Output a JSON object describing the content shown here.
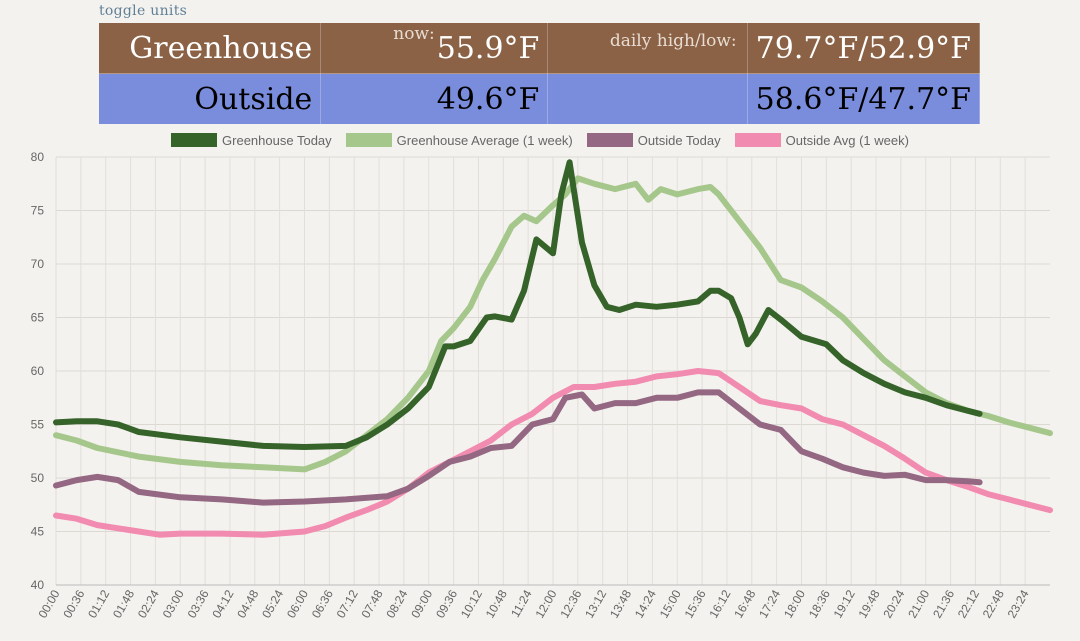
{
  "toggle_label": "toggle units",
  "stats": {
    "greenhouse": {
      "name": "Greenhouse",
      "now_label": "now:",
      "now": "55.9°F",
      "hl_label": "daily high/low:",
      "hl": "79.7°F/52.9°F"
    },
    "outside": {
      "name": "Outside",
      "now": "49.6°F",
      "hl": "58.6°F/47.7°F"
    }
  },
  "colors": {
    "greenhouse_row": "#8b6245",
    "outside_row": "#7a8ddc",
    "gh_today": "#356329",
    "gh_avg": "#a6c78b",
    "out_today": "#946782",
    "out_avg": "#f28bb0"
  },
  "chart_data": {
    "type": "line",
    "ylim": [
      40,
      80
    ],
    "yticks": [
      40,
      45,
      50,
      55,
      60,
      65,
      70,
      75,
      80
    ],
    "grid": true,
    "legend_position": "top",
    "x_ticks": [
      "00:00",
      "00:36",
      "01:12",
      "01:48",
      "02:24",
      "03:00",
      "03:36",
      "04:12",
      "04:48",
      "05:24",
      "06:00",
      "06:36",
      "07:12",
      "07:48",
      "08:24",
      "09:00",
      "09:36",
      "10:12",
      "10:48",
      "11:24",
      "12:00",
      "12:36",
      "13:12",
      "13:48",
      "14:24",
      "15:00",
      "15:36",
      "16:12",
      "16:48",
      "17:24",
      "18:00",
      "18:36",
      "19:12",
      "19:48",
      "20:24",
      "21:00",
      "21:36",
      "22:12",
      "22:48",
      "23:24"
    ],
    "series": [
      {
        "name": "Greenhouse Today",
        "color": "#356329",
        "x": [
          0,
          0.5,
          1,
          1.5,
          2,
          3,
          4,
          5,
          6,
          7,
          7.5,
          8,
          8.5,
          9,
          9.4,
          9.6,
          10,
          10.4,
          10.6,
          11,
          11.3,
          11.6,
          12,
          12.2,
          12.4,
          12.5,
          12.7,
          13,
          13.3,
          13.6,
          14,
          14.5,
          15,
          15.5,
          15.8,
          16,
          16.3,
          16.5,
          16.7,
          16.9,
          17.2,
          17.5,
          18,
          18.6,
          19,
          19.5,
          20,
          20.5,
          21,
          21.5,
          22,
          22.3
        ],
        "y": [
          55.2,
          55.3,
          55.3,
          55.0,
          54.3,
          53.8,
          53.4,
          53.0,
          52.9,
          53.0,
          53.8,
          55.0,
          56.5,
          58.5,
          62.3,
          62.3,
          62.8,
          65.0,
          65.1,
          64.8,
          67.5,
          72.3,
          71.0,
          76.5,
          79.5,
          77.0,
          72.0,
          68.0,
          66.0,
          65.7,
          66.2,
          66.0,
          66.2,
          66.5,
          67.5,
          67.5,
          66.8,
          65.0,
          62.5,
          63.5,
          65.7,
          64.8,
          63.2,
          62.5,
          61.0,
          59.8,
          58.8,
          58.0,
          57.5,
          56.8,
          56.3,
          56.0
        ]
      },
      {
        "name": "Greenhouse Average (1 week)",
        "color": "#a6c78b",
        "x": [
          0,
          0.5,
          1,
          2,
          3,
          4,
          5,
          6,
          6.5,
          7,
          7.5,
          8,
          8.5,
          9,
          9.3,
          9.6,
          10,
          10.3,
          10.6,
          11,
          11.3,
          11.6,
          12,
          12.3,
          12.6,
          13,
          13.5,
          14,
          14.3,
          14.6,
          15,
          15.5,
          15.8,
          16,
          16.5,
          17,
          17.5,
          18,
          18.5,
          19,
          19.5,
          20,
          20.5,
          21,
          21.5,
          22,
          22.5,
          23,
          23.5,
          24
        ],
        "y": [
          54.0,
          53.5,
          52.8,
          52.0,
          51.5,
          51.2,
          51.0,
          50.8,
          51.5,
          52.5,
          54.0,
          55.5,
          57.5,
          60.0,
          62.8,
          64.0,
          66.0,
          68.5,
          70.5,
          73.5,
          74.5,
          74.0,
          75.5,
          76.5,
          78.0,
          77.5,
          77.0,
          77.5,
          76.0,
          77.0,
          76.5,
          77.0,
          77.2,
          76.5,
          74.0,
          71.5,
          68.5,
          67.8,
          66.5,
          65.0,
          63.0,
          61.0,
          59.5,
          58.0,
          57.0,
          56.3,
          55.8,
          55.2,
          54.7,
          54.2
        ]
      },
      {
        "name": "Outside Today",
        "color": "#946782",
        "x": [
          0,
          0.5,
          1,
          1.5,
          2,
          3,
          4,
          5,
          6,
          7,
          8,
          8.5,
          9,
          9.5,
          10,
          10.5,
          11,
          11.5,
          12,
          12.3,
          12.7,
          13,
          13.5,
          14,
          14.5,
          15,
          15.5,
          16,
          16.5,
          17,
          17.5,
          18,
          18.5,
          19,
          19.5,
          20,
          20.5,
          21,
          21.5,
          22,
          22.3
        ],
        "y": [
          49.3,
          49.8,
          50.1,
          49.8,
          48.7,
          48.2,
          48.0,
          47.7,
          47.8,
          48.0,
          48.3,
          49.0,
          50.2,
          51.5,
          52.0,
          52.8,
          53.0,
          55.0,
          55.5,
          57.5,
          57.8,
          56.5,
          57.0,
          57.0,
          57.5,
          57.5,
          58.0,
          58.0,
          56.5,
          55.0,
          54.5,
          52.5,
          51.8,
          51.0,
          50.5,
          50.2,
          50.3,
          49.8,
          49.8,
          49.7,
          49.6
        ]
      },
      {
        "name": "Outside Avg (1 week)",
        "color": "#f28bb0",
        "x": [
          0,
          0.5,
          1,
          1.5,
          2,
          2.5,
          3,
          4,
          5,
          6,
          6.5,
          7,
          7.5,
          8,
          8.5,
          9,
          9.5,
          10,
          10.5,
          11,
          11.5,
          12,
          12.5,
          13,
          13.5,
          14,
          14.5,
          15,
          15.5,
          16,
          16.5,
          17,
          17.5,
          18,
          18.5,
          19,
          19.5,
          20,
          20.5,
          21,
          21.5,
          22,
          22.5,
          23,
          23.5,
          24
        ],
        "y": [
          46.5,
          46.2,
          45.6,
          45.3,
          45.0,
          44.7,
          44.8,
          44.8,
          44.7,
          45.0,
          45.5,
          46.3,
          47.0,
          47.8,
          49.0,
          50.5,
          51.5,
          52.5,
          53.5,
          55.0,
          56.0,
          57.5,
          58.5,
          58.5,
          58.8,
          59.0,
          59.5,
          59.7,
          60.0,
          59.8,
          58.5,
          57.2,
          56.8,
          56.5,
          55.5,
          55.0,
          54.0,
          53.0,
          51.8,
          50.5,
          49.8,
          49.2,
          48.5,
          48.0,
          47.5,
          47.0
        ]
      }
    ]
  }
}
